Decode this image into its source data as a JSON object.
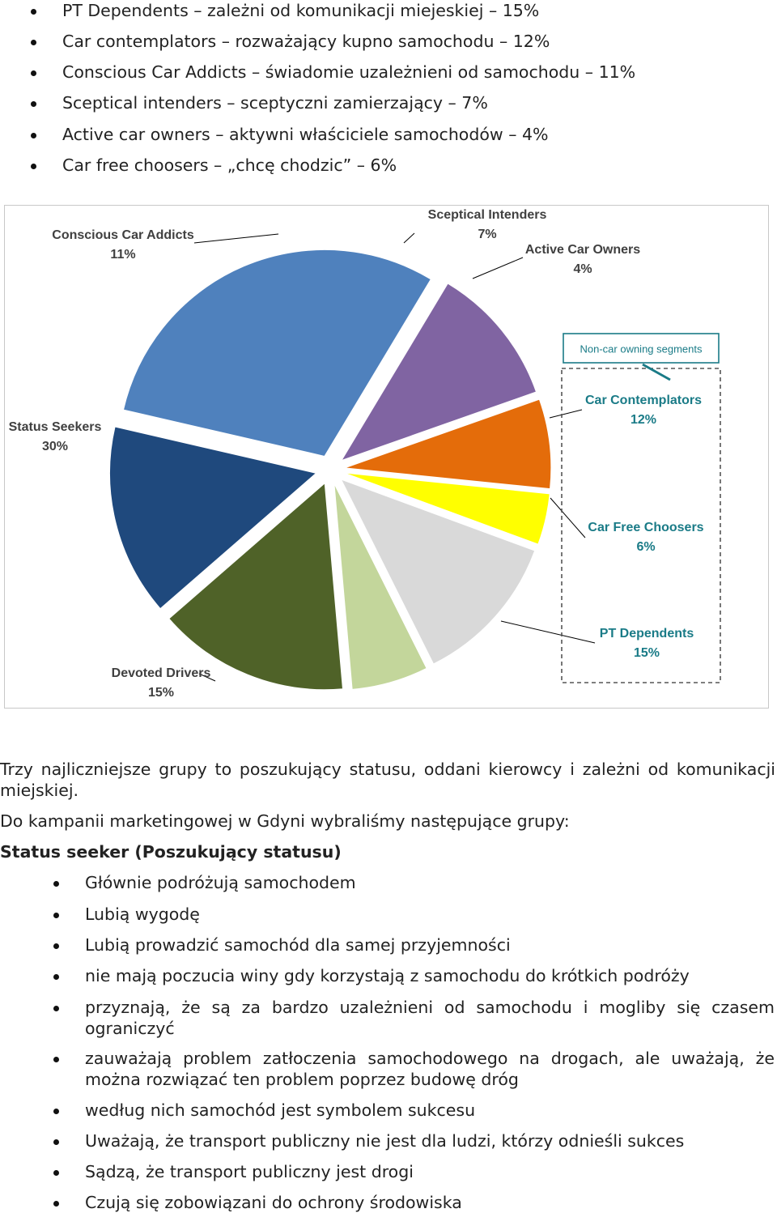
{
  "top_bullets": [
    "PT Dependents – zależni od komunikacji miejeskiej – 15%",
    "Car contemplators – rozważający kupno samochodu – 12%",
    "Conscious Car Addicts – świadomie uzależnieni od samochodu – 11%",
    "Sceptical intenders – sceptyczni zamierzający – 7%",
    "Active car owners – aktywni właściciele samochodów – 4%",
    "Car free choosers – „chcę chodzic” – 6%"
  ],
  "chart_data": {
    "type": "pie",
    "title": "",
    "slices": [
      {
        "name": "Status Seekers",
        "value": 30,
        "value_label": "30%",
        "color": "#4f81bd"
      },
      {
        "name": "Conscious Car Addicts",
        "value": 11,
        "value_label": "11%",
        "color": "#8064a2"
      },
      {
        "name": "Sceptical Intenders",
        "value": 7,
        "value_label": "7%",
        "color": "#e46c0a"
      },
      {
        "name": "Active Car Owners",
        "value": 4,
        "value_label": "4%",
        "color": "#ffff00"
      },
      {
        "name": "Car Contemplators",
        "value": 12,
        "value_label": "12%",
        "color": "#d9d9d9"
      },
      {
        "name": "Car Free Choosers",
        "value": 6,
        "value_label": "6%",
        "color": "#c3d69b"
      },
      {
        "name": "PT Dependents",
        "value": 15,
        "value_label": "15%",
        "color": "#4f6228"
      },
      {
        "name": "Devoted Drivers",
        "value": 15,
        "value_label": "15%",
        "color": "#1f497d"
      }
    ],
    "group_box_label": "Non-car owning segments",
    "group_box_members": [
      "Car Contemplators",
      "Car Free Choosers",
      "PT Dependents"
    ],
    "group_color": "#1a7b87"
  },
  "paragraph1": "Trzy najliczniejsze grupy to poszukujący statusu, oddani kierowcy i zależni od komunikacji miejskiej.",
  "paragraph2": "Do kampanii marketingowej w Gdyni wybraliśmy następujące grupy:",
  "heading": "Status seeker (Poszukujący statusu)",
  "bottom_bullets": [
    "Głównie podróżują samochodem",
    "Lubią wygodę",
    "Lubią prowadzić samochód dla samej przyjemności",
    "nie mają poczucia winy gdy korzystają z samochodu do krótkich podróży",
    "przyznają, że są za bardzo uzależnieni od samochodu i mogliby się czasem ograniczyć",
    "zauważają problem zatłoczenia samochodowego na drogach, ale uważają, że można rozwiązać ten problem poprzez budowę dróg",
    "według nich samochód jest symbolem sukcesu",
    "Uważają, że transport publiczny nie jest dla ludzi, którzy odnieśli sukces",
    "Sądzą, że transport publiczny jest drogi",
    "Czują się zobowiązani do ochrony środowiska"
  ]
}
